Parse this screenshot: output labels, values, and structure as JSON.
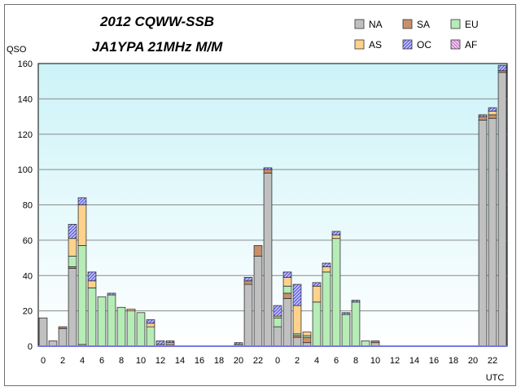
{
  "chart_data": {
    "type": "bar",
    "stacked": true,
    "title": "2012 CQWW-SSB",
    "subtitle": "JA1YPA  21MHz  M/M",
    "ylabel": "QSO",
    "xlabel": "UTC",
    "ylim": [
      0,
      160
    ],
    "yticks": [
      "0",
      "20",
      "40",
      "60",
      "80",
      "100",
      "120",
      "140",
      "160"
    ],
    "xtick_labels": [
      "0",
      "",
      "2",
      "",
      "4",
      "",
      "6",
      "",
      "8",
      "",
      "10",
      "",
      "12",
      "",
      "14",
      "",
      "16",
      "",
      "18",
      "",
      "20",
      "",
      "22",
      "",
      "0",
      "",
      "2",
      "",
      "4",
      "",
      "6",
      "",
      "8",
      "",
      "10",
      "",
      "12",
      "",
      "14",
      "",
      "16",
      "",
      "18",
      "",
      "20",
      "",
      "22",
      ""
    ],
    "grid": "horizontal",
    "legend_position": "top-right",
    "categories": [
      "0",
      "1",
      "2",
      "3",
      "4",
      "5",
      "6",
      "7",
      "8",
      "9",
      "10",
      "11",
      "12",
      "13",
      "14",
      "15",
      "16",
      "17",
      "18",
      "19",
      "20",
      "21",
      "22",
      "23",
      "0",
      "1",
      "2",
      "3",
      "4",
      "5",
      "6",
      "7",
      "8",
      "9",
      "10",
      "11",
      "12",
      "13",
      "14",
      "15",
      "16",
      "17",
      "18",
      "19",
      "20",
      "21",
      "22",
      "23"
    ],
    "series": [
      {
        "name": "NA",
        "color": "#c0c0c0",
        "values": [
          16,
          3,
          10,
          44,
          1,
          0,
          0,
          0,
          0,
          0,
          0,
          0,
          1,
          1,
          0,
          0,
          0,
          0,
          0,
          0,
          1,
          35,
          51,
          98,
          11,
          27,
          5,
          2,
          0,
          0,
          0,
          0,
          0,
          0,
          2,
          0,
          0,
          0,
          0,
          0,
          0,
          0,
          0,
          0,
          0,
          128,
          129,
          155
        ]
      },
      {
        "name": "SA",
        "color": "#c8906a",
        "values": [
          0,
          0,
          1,
          1,
          0,
          0,
          0,
          0,
          0,
          0,
          0,
          0,
          0,
          0,
          0,
          0,
          0,
          0,
          0,
          0,
          0,
          2,
          6,
          2,
          0,
          3,
          1,
          3,
          0,
          0,
          0,
          0,
          0,
          0,
          1,
          0,
          0,
          0,
          0,
          0,
          0,
          0,
          0,
          0,
          0,
          2,
          2,
          1
        ]
      },
      {
        "name": "EU",
        "color": "#b6ecb6",
        "values": [
          0,
          0,
          0,
          6,
          56,
          33,
          28,
          29,
          22,
          20,
          19,
          11,
          0,
          0,
          0,
          0,
          0,
          0,
          0,
          0,
          0,
          0,
          0,
          0,
          5,
          4,
          1,
          1,
          25,
          42,
          61,
          18,
          25,
          3,
          0,
          0,
          0,
          0,
          0,
          0,
          0,
          0,
          0,
          0,
          0,
          0,
          0,
          0
        ]
      },
      {
        "name": "AS",
        "color": "#ffd28c",
        "values": [
          0,
          0,
          0,
          10,
          23,
          4,
          0,
          0,
          0,
          1,
          0,
          2,
          0,
          1,
          0,
          0,
          0,
          0,
          0,
          0,
          0,
          0,
          0,
          0,
          1,
          5,
          16,
          2,
          9,
          3,
          2,
          0,
          0,
          0,
          0,
          0,
          0,
          0,
          0,
          0,
          0,
          0,
          0,
          0,
          0,
          0,
          2,
          0
        ]
      },
      {
        "name": "OC",
        "color": "#b4b4f4",
        "values": [
          0,
          0,
          0,
          8,
          4,
          5,
          0,
          1,
          0,
          0,
          0,
          2,
          2,
          1,
          0,
          0,
          0,
          0,
          0,
          0,
          1,
          2,
          0,
          1,
          6,
          3,
          12,
          0,
          2,
          2,
          2,
          1,
          1,
          0,
          0,
          0,
          0,
          0,
          0,
          0,
          0,
          0,
          0,
          0,
          0,
          1,
          2,
          3
        ]
      },
      {
        "name": "AF",
        "color": "#f0b8f0",
        "values": [
          0,
          0,
          0,
          0,
          0,
          0,
          0,
          0,
          0,
          0,
          0,
          0,
          0,
          0,
          0,
          0,
          0,
          0,
          0,
          0,
          0,
          0,
          0,
          0,
          0,
          0,
          0,
          0,
          0,
          0,
          0,
          0,
          0,
          0,
          0,
          0,
          0,
          0,
          0,
          0,
          0,
          0,
          0,
          0,
          0,
          0,
          0,
          0
        ]
      }
    ]
  }
}
